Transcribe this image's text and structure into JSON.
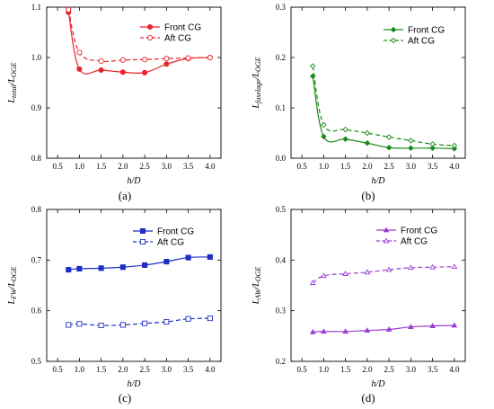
{
  "chart_data": [
    {
      "type": "line",
      "label": "(a)",
      "ylabel_main": "L",
      "ylabel_sub": "total",
      "ylabel_den": "L",
      "ylabel_den_sub": "OGE",
      "xlabel": "h/D",
      "xlim": [
        0.25,
        4.25
      ],
      "ylim": [
        0.8,
        1.1
      ],
      "xticks": [
        0.5,
        1.0,
        1.5,
        2.0,
        2.5,
        3.0,
        3.5,
        4.0
      ],
      "yticks": [
        0.8,
        0.9,
        1.0,
        1.1
      ],
      "marker": "circle",
      "color": "#e8232a",
      "series": [
        {
          "name": "Front CG",
          "style": "solid",
          "filled": true,
          "x": [
            0.75,
            1.0,
            1.5,
            2.0,
            2.5,
            3.0,
            3.5,
            4.0
          ],
          "y": [
            1.09,
            0.977,
            0.975,
            0.971,
            0.97,
            0.987,
            0.998,
            1.0
          ]
        },
        {
          "name": "Aft CG",
          "style": "dashed",
          "filled": false,
          "x": [
            0.75,
            1.0,
            1.5,
            2.0,
            2.5,
            3.0,
            3.5,
            4.0
          ],
          "y": [
            1.095,
            1.01,
            0.993,
            0.995,
            0.996,
            0.998,
            0.999,
            1.0
          ]
        }
      ]
    },
    {
      "type": "line",
      "label": "(b)",
      "ylabel_main": "L",
      "ylabel_sub": "fuselage",
      "ylabel_den": "L",
      "ylabel_den_sub": "OGE",
      "xlabel": "h/D",
      "xlim": [
        0.25,
        4.25
      ],
      "ylim": [
        0.0,
        0.3
      ],
      "xticks": [
        0.5,
        1.0,
        1.5,
        2.0,
        2.5,
        3.0,
        3.5,
        4.0
      ],
      "yticks": [
        0.0,
        0.1,
        0.2,
        0.3
      ],
      "marker": "diamond",
      "color": "#1a8a1a",
      "series": [
        {
          "name": "Front CG",
          "style": "solid",
          "filled": true,
          "x": [
            0.75,
            1.0,
            1.5,
            2.0,
            2.5,
            3.0,
            3.5,
            4.0
          ],
          "y": [
            0.163,
            0.043,
            0.038,
            0.03,
            0.021,
            0.02,
            0.02,
            0.019
          ]
        },
        {
          "name": "Aft CG",
          "style": "dashed",
          "filled": false,
          "x": [
            0.75,
            1.0,
            1.5,
            2.0,
            2.5,
            3.0,
            3.5,
            4.0
          ],
          "y": [
            0.183,
            0.066,
            0.057,
            0.05,
            0.042,
            0.035,
            0.028,
            0.025
          ]
        }
      ]
    },
    {
      "type": "line",
      "label": "(c)",
      "ylabel_main": "L",
      "ylabel_sub": "FW",
      "ylabel_den": "L",
      "ylabel_den_sub": "OGE",
      "xlabel": "h/D",
      "xlim": [
        0.25,
        4.25
      ],
      "ylim": [
        0.5,
        0.8
      ],
      "xticks": [
        0.5,
        1.0,
        1.5,
        2.0,
        2.5,
        3.0,
        3.5,
        4.0
      ],
      "yticks": [
        0.5,
        0.6,
        0.7,
        0.8
      ],
      "marker": "square",
      "color": "#1c2fc4",
      "series": [
        {
          "name": "Front CG",
          "style": "solid",
          "filled": true,
          "x": [
            0.75,
            1.0,
            1.5,
            2.0,
            2.5,
            3.0,
            3.5,
            4.0
          ],
          "y": [
            0.681,
            0.683,
            0.684,
            0.686,
            0.69,
            0.697,
            0.705,
            0.706
          ]
        },
        {
          "name": "Aft CG",
          "style": "dashed",
          "filled": false,
          "x": [
            0.75,
            1.0,
            1.5,
            2.0,
            2.5,
            3.0,
            3.5,
            4.0
          ],
          "y": [
            0.572,
            0.574,
            0.571,
            0.572,
            0.575,
            0.578,
            0.584,
            0.585
          ]
        }
      ]
    },
    {
      "type": "line",
      "label": "(d)",
      "ylabel_main": "L",
      "ylabel_sub": "AW",
      "ylabel_den": "L",
      "ylabel_den_sub": "OGE",
      "xlabel": "h/D",
      "xlim": [
        0.25,
        4.25
      ],
      "ylim": [
        0.2,
        0.5
      ],
      "xticks": [
        0.5,
        1.0,
        1.5,
        2.0,
        2.5,
        3.0,
        3.5,
        4.0
      ],
      "yticks": [
        0.2,
        0.3,
        0.4,
        0.5
      ],
      "marker": "triangle",
      "color": "#9b3fd1",
      "series": [
        {
          "name": "Front CG",
          "style": "solid",
          "filled": true,
          "x": [
            0.75,
            1.0,
            1.5,
            2.0,
            2.5,
            3.0,
            3.5,
            4.0
          ],
          "y": [
            0.258,
            0.259,
            0.259,
            0.261,
            0.263,
            0.268,
            0.27,
            0.271
          ]
        },
        {
          "name": "Aft CG",
          "style": "dashed",
          "filled": false,
          "x": [
            0.75,
            1.0,
            1.5,
            2.0,
            2.5,
            3.0,
            3.5,
            4.0
          ],
          "y": [
            0.355,
            0.369,
            0.373,
            0.376,
            0.381,
            0.385,
            0.386,
            0.387
          ]
        }
      ]
    }
  ]
}
